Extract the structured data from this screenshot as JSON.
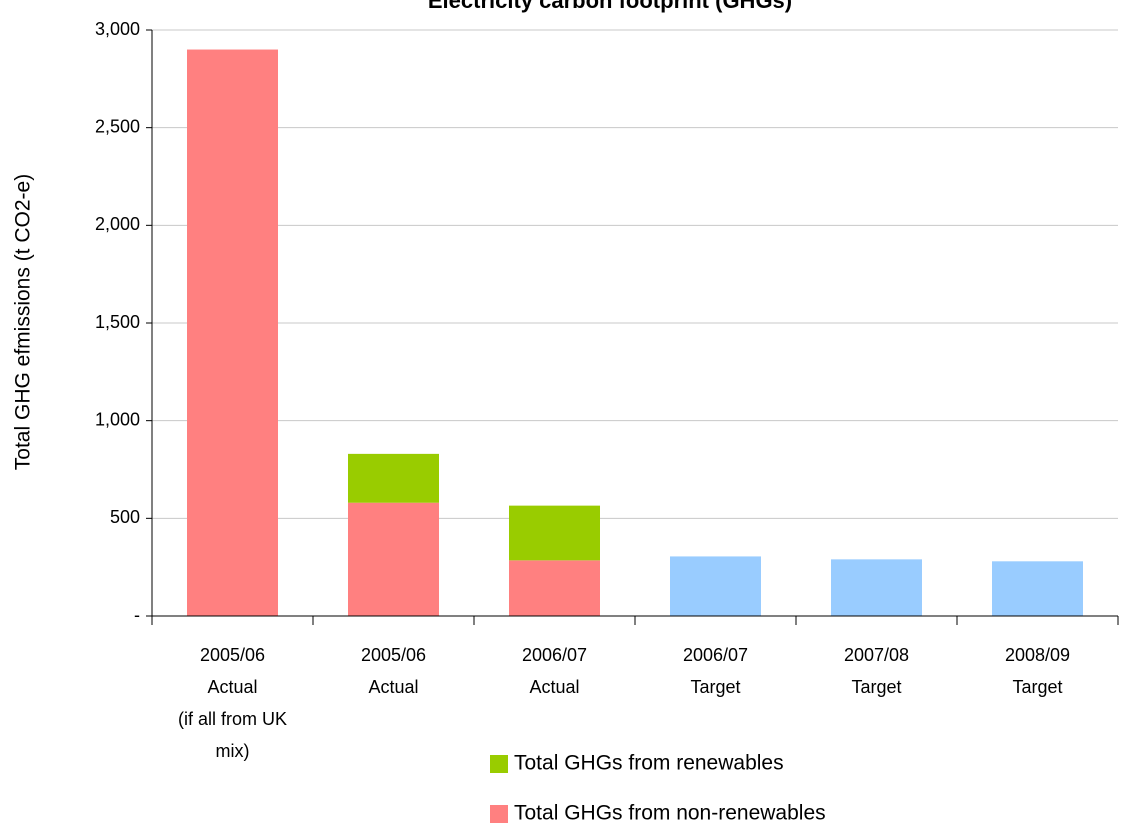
{
  "chart_data": {
    "type": "bar",
    "stacked": true,
    "title": "Electricity carbon footprint (GHGs)",
    "y_label": "Total GHG efmissions (t CO2-e)",
    "categories": [
      [
        "2005/06",
        "Actual",
        "(if all from UK",
        "mix)"
      ],
      [
        "2005/06",
        "Actual"
      ],
      [
        "2006/07",
        "Actual"
      ],
      [
        "2006/07",
        "Target"
      ],
      [
        "2007/08",
        "Target"
      ],
      [
        "2008/09",
        "Target"
      ]
    ],
    "series": [
      {
        "name": "Total GHGs from non-renewables",
        "color": "#ff8080",
        "values": [
          2900,
          580,
          285,
          null,
          null,
          null
        ]
      },
      {
        "name": "Total GHGs from renewables",
        "color": "#99cc00",
        "values": [
          null,
          250,
          280,
          null,
          null,
          null
        ]
      },
      {
        "color": "#99ccff",
        "values": [
          null,
          null,
          null,
          305,
          290,
          280
        ]
      }
    ],
    "ylim": [
      0,
      3000
    ],
    "yticks": [
      {
        "value": 0,
        "label": "-"
      },
      500,
      {
        "value": 1000,
        "label": "1,000"
      },
      {
        "value": 1500,
        "label": "1,500"
      },
      {
        "value": 2000,
        "label": "2,000"
      },
      {
        "value": 2500,
        "label": "2,500"
      },
      {
        "value": 3000,
        "label": "3,000"
      }
    ],
    "grid": true
  }
}
